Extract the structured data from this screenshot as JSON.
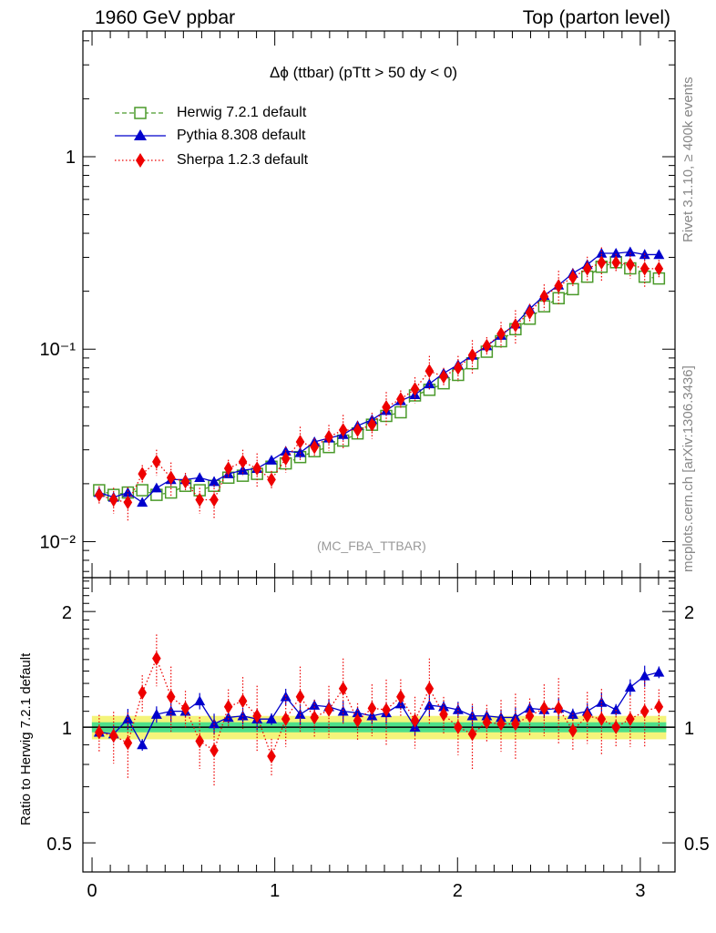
{
  "header": {
    "left": "1960 GeV ppbar",
    "right": "Top (parton level)"
  },
  "side_labels": {
    "rivet": "Rivet 3.1.10, ≥ 400k events",
    "mcplots": "mcplots.cern.ch [arXiv:1306.3436]"
  },
  "colors": {
    "herwig": "#4a9a2a",
    "pythia": "#0000cc",
    "sherpa": "#ee0000",
    "band_inner": "#4ee08a",
    "band_outer": "#f4f47a"
  },
  "chart_data": [
    {
      "type": "line",
      "title": "Δϕ (ttbar) (pTtt > 50 dy < 0)",
      "watermark": "(MC_FBA_TTBAR)",
      "yscale": "log",
      "xlim": [
        -0.05,
        3.19
      ],
      "ylim": [
        0.0065,
        4.5
      ],
      "yticks": [
        {
          "value": 1,
          "label": "1"
        },
        {
          "value": 0.1,
          "label": "10⁻¹"
        },
        {
          "value": 0.01,
          "label": "10⁻²"
        }
      ],
      "legend_position": "top-left",
      "x": [
        0.039,
        0.118,
        0.196,
        0.275,
        0.353,
        0.432,
        0.511,
        0.589,
        0.668,
        0.746,
        0.825,
        0.903,
        0.982,
        1.06,
        1.139,
        1.217,
        1.296,
        1.374,
        1.453,
        1.532,
        1.61,
        1.689,
        1.767,
        1.846,
        1.924,
        2.003,
        2.081,
        2.16,
        2.238,
        2.317,
        2.395,
        2.474,
        2.553,
        2.631,
        2.71,
        2.788,
        2.867,
        2.945,
        3.024,
        3.102
      ],
      "series": [
        {
          "name": "Herwig 7.2.1 default",
          "marker": "open-square",
          "line": "dashed",
          "values": [
            0.0185,
            0.0175,
            0.018,
            0.0185,
            0.0175,
            0.018,
            0.0195,
            0.0185,
            0.0195,
            0.0215,
            0.022,
            0.0225,
            0.0245,
            0.0255,
            0.0275,
            0.0295,
            0.031,
            0.0335,
            0.0365,
            0.0405,
            0.045,
            0.047,
            0.0575,
            0.0615,
            0.0665,
            0.0735,
            0.0845,
            0.097,
            0.11,
            0.127,
            0.144,
            0.167,
            0.184,
            0.205,
            0.238,
            0.268,
            0.283,
            0.263,
            0.238,
            0.233
          ]
        },
        {
          "name": "Pythia 8.308 default",
          "marker": "filled-triangle",
          "line": "solid",
          "values": [
            0.018,
            0.017,
            0.018,
            0.016,
            0.019,
            0.021,
            0.021,
            0.0215,
            0.0205,
            0.0225,
            0.0235,
            0.024,
            0.0265,
            0.0295,
            0.029,
            0.033,
            0.0345,
            0.036,
            0.04,
            0.043,
            0.048,
            0.054,
            0.058,
            0.066,
            0.075,
            0.083,
            0.093,
            0.104,
            0.118,
            0.135,
            0.162,
            0.19,
            0.215,
            0.248,
            0.275,
            0.315,
            0.315,
            0.32,
            0.31,
            0.31
          ]
        },
        {
          "name": "Sherpa 1.2.3 default",
          "marker": "filled-diamond",
          "line": "dotted",
          "values": [
            0.0175,
            0.0165,
            0.016,
            0.0225,
            0.026,
            0.0215,
            0.0205,
            0.0165,
            0.0165,
            0.024,
            0.026,
            0.024,
            0.021,
            0.027,
            0.033,
            0.031,
            0.035,
            0.038,
            0.038,
            0.0405,
            0.05,
            0.055,
            0.062,
            0.077,
            0.072,
            0.08,
            0.093,
            0.104,
            0.12,
            0.133,
            0.155,
            0.188,
            0.213,
            0.236,
            0.262,
            0.282,
            0.282,
            0.275,
            0.262,
            0.262
          ]
        }
      ]
    },
    {
      "type": "line",
      "ylabel": "Ratio to Herwig 7.2.1 default",
      "yscale": "log",
      "xlim": [
        -0.05,
        3.19
      ],
      "ylim": [
        0.42,
        2.45
      ],
      "yticks": [
        {
          "value": 0.5,
          "label": "0.5"
        },
        {
          "value": 1,
          "label": "1"
        },
        {
          "value": 2,
          "label": "2"
        }
      ],
      "xticks": [
        {
          "value": 0,
          "label": "0"
        },
        {
          "value": 1,
          "label": "1"
        },
        {
          "value": 2,
          "label": "2"
        },
        {
          "value": 3,
          "label": "3"
        }
      ],
      "x": [
        0.039,
        0.118,
        0.196,
        0.275,
        0.353,
        0.432,
        0.511,
        0.589,
        0.668,
        0.746,
        0.825,
        0.903,
        0.982,
        1.06,
        1.139,
        1.217,
        1.296,
        1.374,
        1.453,
        1.532,
        1.61,
        1.689,
        1.767,
        1.846,
        1.924,
        2.003,
        2.081,
        2.16,
        2.238,
        2.317,
        2.395,
        2.474,
        2.553,
        2.631,
        2.71,
        2.788,
        2.867,
        2.945,
        3.024,
        3.102
      ],
      "series": [
        {
          "name": "Pythia 8.308 default",
          "values": [
            0.97,
            0.96,
            1.05,
            0.9,
            1.08,
            1.1,
            1.1,
            1.17,
            1.02,
            1.06,
            1.07,
            1.05,
            1.05,
            1.2,
            1.08,
            1.14,
            1.13,
            1.1,
            1.09,
            1.07,
            1.09,
            1.15,
            1.0,
            1.14,
            1.13,
            1.11,
            1.07,
            1.07,
            1.06,
            1.06,
            1.12,
            1.11,
            1.12,
            1.08,
            1.1,
            1.16,
            1.11,
            1.27,
            1.36,
            1.39
          ]
        },
        {
          "name": "Sherpa 1.2.3 default",
          "values": [
            0.97,
            0.95,
            0.91,
            1.23,
            1.51,
            1.2,
            1.12,
            0.92,
            0.87,
            1.13,
            1.17,
            1.07,
            0.84,
            1.05,
            1.2,
            1.06,
            1.11,
            1.26,
            1.04,
            1.12,
            1.11,
            1.2,
            1.04,
            1.26,
            1.08,
            1.0,
            0.96,
            1.03,
            1.02,
            1.02,
            1.07,
            1.12,
            1.12,
            0.98,
            1.07,
            1.05,
            1.0,
            1.05,
            1.1,
            1.13
          ]
        }
      ],
      "reference_line": 1,
      "band_inner_halfwidth": 0.03,
      "band_outer_halfwidth": 0.07
    }
  ]
}
